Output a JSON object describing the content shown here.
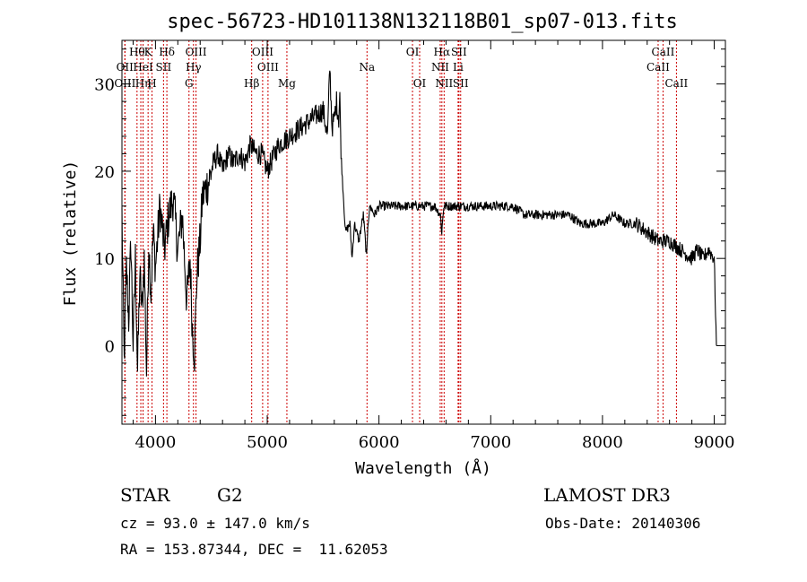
{
  "chart_data": {
    "type": "line",
    "title": "spec-56723-HD101138N132118B01_sp07-013.fits",
    "xlabel": "Wavelength (Å)",
    "ylabel": "Flux (relative)",
    "xlim": [
      3700,
      9100
    ],
    "ylim": [
      -9,
      35
    ],
    "xticks": [
      4000,
      5000,
      6000,
      7000,
      8000,
      9000
    ],
    "yticks": [
      0,
      10,
      20,
      30
    ],
    "line_color": "#000000",
    "marker_color": "#cc0000",
    "series": [
      {
        "x": [
          3700,
          3720,
          3740,
          3760,
          3780,
          3800,
          3820,
          3840,
          3860,
          3880,
          3900,
          3920,
          3940,
          3960,
          3980,
          4000,
          4040,
          4080,
          4120,
          4160,
          4200,
          4240,
          4280,
          4310,
          4330,
          4350,
          4370,
          4400,
          4420,
          4450,
          4480,
          4520,
          4560,
          4600,
          4650,
          4700,
          4750,
          4800,
          4850,
          4900,
          4950,
          5000,
          5100,
          5200,
          5300,
          5400,
          5500,
          5540,
          5560,
          5580,
          5600,
          5620,
          5640,
          5650,
          5660,
          5700,
          5740,
          5760,
          5780,
          5820,
          5860,
          5890,
          5900,
          5920,
          5960,
          6000,
          6100,
          6200,
          6300,
          6400,
          6500,
          6550,
          6562,
          6580,
          6600,
          6700,
          6800,
          6900,
          7000,
          7100,
          7200,
          7300,
          7400,
          7500,
          7600,
          7700,
          7800,
          7900,
          8000,
          8100,
          8200,
          8300,
          8400,
          8500,
          8600,
          8700,
          8800,
          8850,
          8900,
          8950,
          9000,
          9020
        ],
        "values": [
          15,
          -2,
          9,
          3,
          12,
          0,
          10,
          -3,
          8,
          4,
          10,
          -3,
          12,
          6,
          13,
          9,
          16,
          11,
          15,
          17,
          11,
          15,
          5,
          10,
          2,
          -1,
          8,
          12,
          17,
          18,
          19,
          21,
          22,
          20,
          22,
          21,
          22,
          21,
          23,
          22,
          22,
          20,
          23,
          24,
          25,
          26,
          27,
          24,
          32,
          25,
          26,
          28,
          26,
          29,
          22,
          13,
          14,
          10,
          14,
          12,
          15,
          10,
          14,
          16,
          15,
          16,
          16,
          16,
          16,
          16,
          16,
          15,
          13,
          16,
          16,
          16,
          16,
          16,
          16,
          16,
          16,
          15,
          15,
          15,
          15,
          15,
          14,
          14,
          14,
          15,
          14,
          14,
          13,
          12,
          12,
          11,
          10,
          11,
          10,
          11,
          10,
          0
        ]
      }
    ],
    "line_markers": [
      {
        "x": 3726,
        "label": "OII",
        "row": 1
      },
      {
        "x": 3727,
        "label": "OIII",
        "row": 2
      },
      {
        "x": 3835,
        "label": "Hθ",
        "row": 0
      },
      {
        "x": 3869,
        "label": "",
        "row": -1
      },
      {
        "x": 3889,
        "label": "HeI",
        "row": 1
      },
      {
        "x": 3889,
        "label": "Hη",
        "row": 2
      },
      {
        "x": 3934,
        "label": "K",
        "row": 0
      },
      {
        "x": 3969,
        "label": "H",
        "row": 2
      },
      {
        "x": 4072,
        "label": "SII",
        "row": 1
      },
      {
        "x": 4102,
        "label": "Hδ",
        "row": 0
      },
      {
        "x": 4300,
        "label": "G",
        "row": 2
      },
      {
        "x": 4340,
        "label": "Hγ",
        "row": 1
      },
      {
        "x": 4363,
        "label": "OIII",
        "row": 0
      },
      {
        "x": 4861,
        "label": "Hβ",
        "row": 2
      },
      {
        "x": 4959,
        "label": "OIII",
        "row": 0
      },
      {
        "x": 5007,
        "label": "OIII",
        "row": 1
      },
      {
        "x": 5176,
        "label": "Mg",
        "row": 2
      },
      {
        "x": 5893,
        "label": "Na",
        "row": 1
      },
      {
        "x": 6300,
        "label": "OI",
        "row": 0
      },
      {
        "x": 6364,
        "label": "OI",
        "row": 2
      },
      {
        "x": 6548,
        "label": "NII",
        "row": 1
      },
      {
        "x": 6563,
        "label": "Hα",
        "row": 0
      },
      {
        "x": 6583,
        "label": "NII",
        "row": 2
      },
      {
        "x": 6708,
        "label": "Li",
        "row": 1
      },
      {
        "x": 6716,
        "label": "SII",
        "row": 0
      },
      {
        "x": 6731,
        "label": "SII",
        "row": 2
      },
      {
        "x": 8498,
        "label": "CaII",
        "row": 1
      },
      {
        "x": 8542,
        "label": "CaII",
        "row": 0
      },
      {
        "x": 8662,
        "label": "CaII",
        "row": 2
      }
    ]
  },
  "footer": {
    "object_class": "STAR",
    "subclass": "G2",
    "survey": "LAMOST DR3",
    "redshift_line": "cz = 93.0 ± 147.0 km/s",
    "obs_date": "Obs-Date: 20140306",
    "coords": "RA = 153.87344, DEC =  11.62053"
  }
}
